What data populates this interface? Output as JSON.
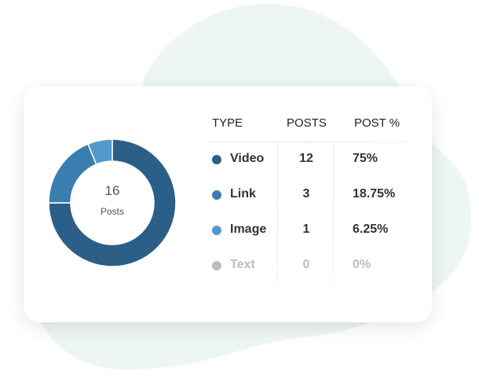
{
  "colors": {
    "background_blob": "#eef6f2",
    "video": "#2c5f88",
    "link": "#3a7eb0",
    "image": "#5299cc",
    "text": "#bdbdbd"
  },
  "center": {
    "value": "16",
    "label": "Posts"
  },
  "table": {
    "headers": [
      "TYPE",
      "POSTS",
      "POST %"
    ],
    "rows": [
      {
        "type": "Video",
        "posts": "12",
        "pct": "75%",
        "color": "#2c5f88",
        "text_color": "#333333"
      },
      {
        "type": "Link",
        "posts": "3",
        "pct": "18.75%",
        "color": "#3a7eb0",
        "text_color": "#333333"
      },
      {
        "type": "Image",
        "posts": "1",
        "pct": "6.25%",
        "color": "#5299cc",
        "text_color": "#333333"
      },
      {
        "type": "Text",
        "posts": "0",
        "pct": "0%",
        "color": "#bdbdbd",
        "text_color": "#bdbdbd"
      }
    ]
  },
  "chart_data": {
    "type": "pie",
    "style": "donut",
    "categories": [
      "Video",
      "Link",
      "Image",
      "Text"
    ],
    "values": [
      12,
      3,
      1,
      0
    ],
    "colors": [
      "#2c5f88",
      "#3a7eb0",
      "#5299cc",
      "#bdbdbd"
    ]
  }
}
